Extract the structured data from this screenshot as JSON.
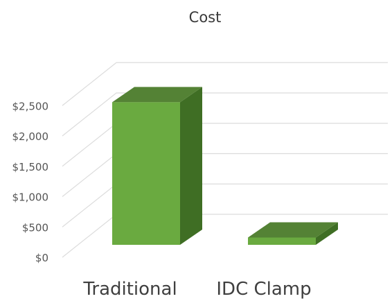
{
  "chart_data": {
    "type": "bar",
    "title": "Cost",
    "categories": [
      "Traditional",
      "IDC Clamp"
    ],
    "values": [
      2350,
      120
    ],
    "y_ticks": [
      "$0",
      "$500",
      "$1,000",
      "$1,500",
      "$2,000",
      "$2,500"
    ],
    "ylim": [
      0,
      2500
    ],
    "grid": true,
    "legend": "none",
    "bar_color": "#6aaa40",
    "bar_top_color": "#548235",
    "bar_side_color": "#3f6e24"
  }
}
